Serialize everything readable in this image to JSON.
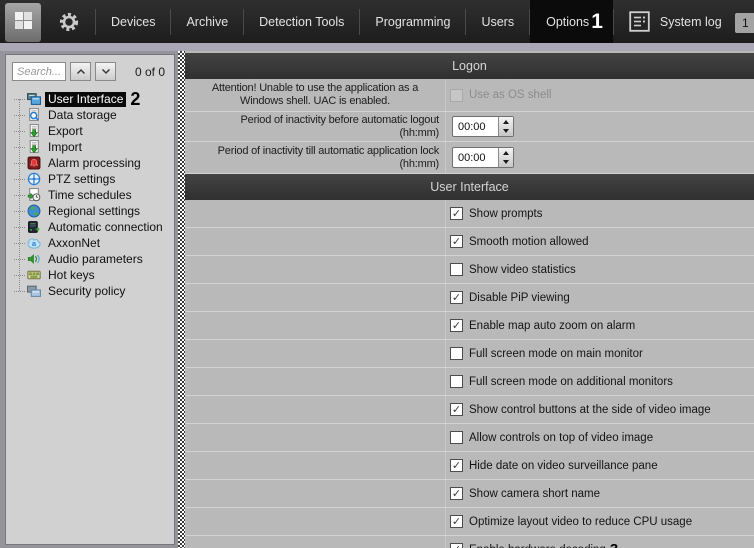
{
  "topbar": {
    "menu": [
      {
        "label": "Devices"
      },
      {
        "label": "Archive"
      },
      {
        "label": "Detection Tools"
      },
      {
        "label": "Programming"
      },
      {
        "label": "Users"
      },
      {
        "label": "Options",
        "active": true,
        "annotation": "1"
      },
      {
        "label": "System log",
        "icon": "system-log-icon"
      }
    ],
    "overflow_button_label": "1"
  },
  "sidebar": {
    "search_placeholder": "Search...",
    "counter": "0 of 0",
    "tree": [
      {
        "label": "User Interface",
        "icon": "user-interface-icon",
        "selected": true,
        "annotation": "2"
      },
      {
        "label": "Data storage",
        "icon": "data-storage-icon"
      },
      {
        "label": "Export",
        "icon": "export-icon"
      },
      {
        "label": "Import",
        "icon": "import-icon"
      },
      {
        "label": "Alarm processing",
        "icon": "alarm-processing-icon"
      },
      {
        "label": "PTZ settings",
        "icon": "ptz-settings-icon"
      },
      {
        "label": "Time schedules",
        "icon": "time-schedules-icon"
      },
      {
        "label": "Regional settings",
        "icon": "regional-settings-icon"
      },
      {
        "label": "Automatic connection",
        "icon": "automatic-connection-icon"
      },
      {
        "label": "AxxonNet",
        "icon": "axxonnet-icon"
      },
      {
        "label": "Audio parameters",
        "icon": "audio-parameters-icon"
      },
      {
        "label": "Hot keys",
        "icon": "hot-keys-icon"
      },
      {
        "label": "Security policy",
        "icon": "security-policy-icon"
      }
    ]
  },
  "logon": {
    "title": "Logon",
    "attention_text": "Attention! Unable to use the application as a Windows shell. UAC is enabled.",
    "os_shell": {
      "label": "Use as OS shell",
      "checked": false,
      "disabled": true
    },
    "rows": [
      {
        "label": "Period of inactivity before automatic logout (hh:mm)",
        "value": "00:00"
      },
      {
        "label": "Period of inactivity till automatic application lock (hh:mm)",
        "value": "00:00"
      }
    ]
  },
  "user_interface": {
    "title": "User Interface",
    "options": [
      {
        "label": "Show prompts",
        "checked": true
      },
      {
        "label": "Smooth motion allowed",
        "checked": true
      },
      {
        "label": "Show video statistics",
        "checked": false
      },
      {
        "label": "Disable PiP viewing",
        "checked": true
      },
      {
        "label": "Enable map auto zoom on alarm",
        "checked": true
      },
      {
        "label": "Full screen mode on main monitor",
        "checked": false
      },
      {
        "label": "Full screen mode on additional monitors",
        "checked": false
      },
      {
        "label": "Show control buttons at the side of video image",
        "checked": true
      },
      {
        "label": "Allow controls on top of video image",
        "checked": false
      },
      {
        "label": "Hide date on video surveillance pane",
        "checked": true
      },
      {
        "label": "Show camera short name",
        "checked": true
      },
      {
        "label": "Optimize layout video to reduce CPU usage",
        "checked": true
      },
      {
        "label": "Enable hardware decoding",
        "checked": true,
        "annotation": "3"
      }
    ]
  },
  "colors": {
    "topbar_bg": "#242424",
    "active_tab_bg": "#0b0b0b",
    "section_header_bg": "#3a3a3a",
    "row_bg": "#b9b9b9",
    "sidebar_bg": "#d1d1d1",
    "selection_bg": "#0a0a0a",
    "annotation_color": "#000000"
  }
}
